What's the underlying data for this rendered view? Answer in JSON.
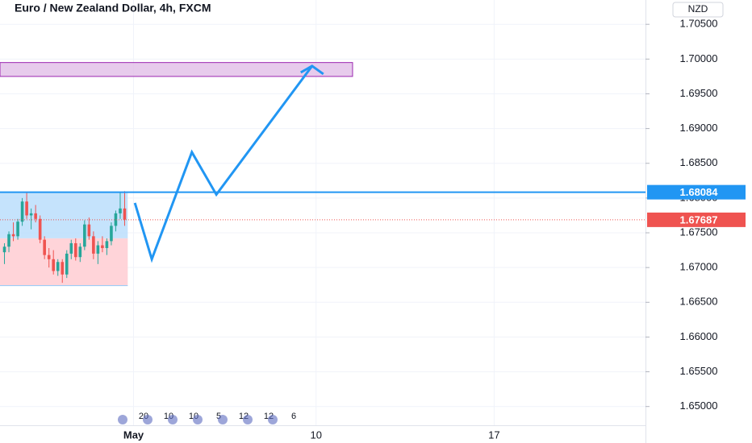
{
  "chart_data": {
    "type": "candlestick",
    "title": "Euro / New Zealand Dollar, 4h, FXCM",
    "currency": "NZD",
    "xlim": [
      0,
      145
    ],
    "ylim": [
      1.6473,
      1.7085
    ],
    "grid": true,
    "xticks": [
      {
        "value": 30,
        "label": "May"
      },
      {
        "value": 71,
        "label": "10"
      },
      {
        "value": 111,
        "label": "17"
      }
    ],
    "yticks": [
      {
        "value": 1.65,
        "label": "1.65000"
      },
      {
        "value": 1.655,
        "label": "1.65500"
      },
      {
        "value": 1.66,
        "label": "1.66000"
      },
      {
        "value": 1.665,
        "label": "1.66500"
      },
      {
        "value": 1.67,
        "label": "1.67000"
      },
      {
        "value": 1.675,
        "label": "1.67500"
      },
      {
        "value": 1.68,
        "label": "1.68000"
      },
      {
        "value": 1.685,
        "label": "1.68500"
      },
      {
        "value": 1.69,
        "label": "1.69000"
      },
      {
        "value": 1.695,
        "label": "1.69500"
      },
      {
        "value": 1.7,
        "label": "1.70000"
      },
      {
        "value": 1.705,
        "label": "1.70500"
      }
    ],
    "up_color": "#26a69a",
    "down_color": "#ef5350",
    "x": [
      1,
      2,
      3,
      4,
      5,
      6,
      7,
      8,
      9,
      10,
      11,
      12,
      13,
      14,
      15,
      16,
      17,
      18,
      19,
      20,
      21,
      22,
      23,
      24,
      25,
      26,
      27,
      28
    ],
    "open": [
      1.6722,
      1.673,
      1.6748,
      1.6745,
      1.6766,
      1.6795,
      1.6775,
      1.6778,
      1.677,
      1.674,
      1.6718,
      1.6712,
      1.6695,
      1.6708,
      1.669,
      1.672,
      1.6735,
      1.6715,
      1.673,
      1.6762,
      1.6745,
      1.672,
      1.6732,
      1.6728,
      1.6738,
      1.676,
      1.6778,
      1.6785
    ],
    "high": [
      1.6735,
      1.6752,
      1.6765,
      1.677,
      1.68,
      1.6808,
      1.6785,
      1.679,
      1.6775,
      1.6745,
      1.6728,
      1.6725,
      1.6712,
      1.6712,
      1.6725,
      1.674,
      1.6742,
      1.6735,
      1.6768,
      1.6772,
      1.6752,
      1.6738,
      1.6745,
      1.6742,
      1.6765,
      1.6782,
      1.6808,
      1.681
    ],
    "low": [
      1.6705,
      1.6722,
      1.6738,
      1.674,
      1.676,
      1.677,
      1.6755,
      1.6765,
      1.6735,
      1.6712,
      1.67,
      1.669,
      1.6688,
      1.6678,
      1.6685,
      1.6712,
      1.671,
      1.6708,
      1.6725,
      1.674,
      1.6712,
      1.6705,
      1.6722,
      1.6718,
      1.6732,
      1.6752,
      1.677,
      1.676
    ],
    "close": [
      1.673,
      1.6748,
      1.6745,
      1.6766,
      1.6795,
      1.6775,
      1.6778,
      1.677,
      1.674,
      1.6718,
      1.6712,
      1.6695,
      1.6708,
      1.669,
      1.672,
      1.6735,
      1.6715,
      1.673,
      1.6762,
      1.6745,
      1.672,
      1.6732,
      1.6728,
      1.6738,
      1.676,
      1.6778,
      1.6785,
      1.6769
    ],
    "zone": {
      "x": [
        0,
        79.2
      ],
      "low": 1.6975,
      "high": 1.6995,
      "color": "#e1bee7"
    },
    "position": {
      "x": [
        0,
        28.7
      ],
      "stop": 1.6674,
      "entry": 1.6742,
      "target": 1.6808,
      "profit_color": "#bbdefb",
      "loss_color": "#ffcdd2"
    },
    "projection": {
      "x": [
        30.3,
        34.1,
        43.1,
        48.6,
        70.1
      ],
      "values": [
        1.6793,
        1.6712,
        1.6866,
        1.6805,
        1.699
      ],
      "color": "#2196f3"
    },
    "hline": {
      "value": 1.68084,
      "color": "#2196f3"
    },
    "last_price": {
      "value": 1.67687,
      "color": "#ef5350"
    },
    "event_labels": [
      "20",
      "10",
      "10",
      "5",
      "12",
      "12",
      "6"
    ]
  }
}
